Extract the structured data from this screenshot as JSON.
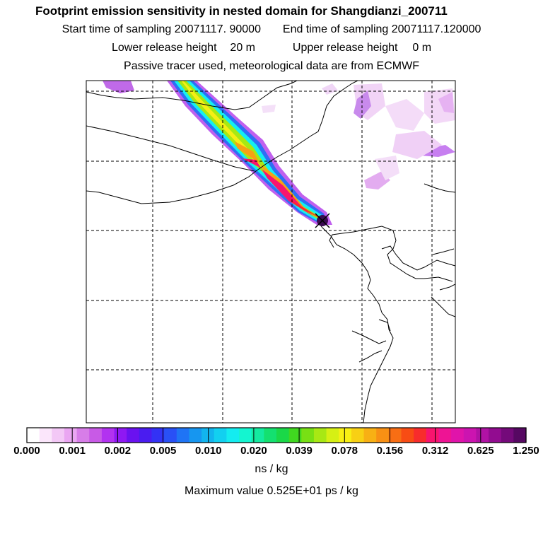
{
  "header": {
    "title": "Footprint emission sensitivity in nested domain for Shangdianzi_200711",
    "start_label": "Start time of sampling",
    "start_value": "20071117. 90000",
    "end_label": "End time of sampling",
    "end_value": "20071117.120000",
    "lower_label": "Lower release height",
    "lower_value": "20 m",
    "upper_label": "Upper release height",
    "upper_value": "0 m",
    "tracer_note": "Passive tracer used, meteorological data are from ECMWF"
  },
  "colorbar": {
    "labels": [
      "0.000",
      "0.001",
      "0.002",
      "0.005",
      "0.010",
      "0.020",
      "0.039",
      "0.078",
      "0.156",
      "0.312",
      "0.625",
      "1.250"
    ],
    "colors": [
      "#ffffff",
      "#fbe6fb",
      "#f3c8f6",
      "#eaa6f2",
      "#d77de8",
      "#c85ae6",
      "#b232f0",
      "#8f18f3",
      "#6a12f0",
      "#4a1cf0",
      "#3332f5",
      "#2950f6",
      "#1f74f5",
      "#1696f0",
      "#12b4ee",
      "#12d0f0",
      "#14ecf0",
      "#14f5d0",
      "#14eaa0",
      "#14e070",
      "#1ad848",
      "#40d820",
      "#78e014",
      "#a8e814",
      "#d6f014",
      "#f8f014",
      "#f8d014",
      "#f8b014",
      "#f89014",
      "#f86e14",
      "#f84c14",
      "#f82c2c",
      "#f8146e",
      "#ee1494",
      "#e014aa",
      "#cc14b0",
      "#b012a4",
      "#920c90",
      "#740a7a",
      "#560862"
    ],
    "units": "ns / kg"
  },
  "footer": {
    "max_label": "Maximum value",
    "max_value": "0.525E+01 ps / kg"
  },
  "map": {
    "release_site": "Shangdianzi",
    "marker_icon": "release-site-x-icon"
  }
}
